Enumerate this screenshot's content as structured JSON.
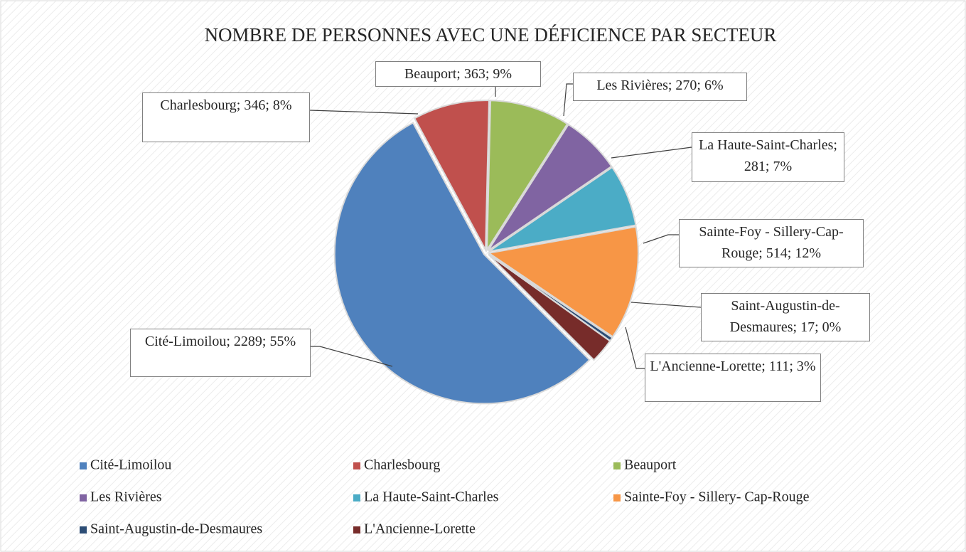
{
  "chart_data": {
    "type": "pie",
    "title": "NOMBRE DE PERSONNES AVEC UNE DÉFICIENCE PAR SECTEUR",
    "categories": [
      "Cité-Limoilou",
      "Charlesbourg",
      "Beauport",
      "Les Rivières",
      "La Haute-Saint-Charles",
      "Sainte-Foy - Sillery- Cap-Rouge",
      "Saint-Augustin-de-Desmaures",
      "L'Ancienne-Lorette"
    ],
    "values": [
      2289,
      346,
      363,
      270,
      281,
      514,
      17,
      111
    ],
    "value_labels": [
      "Cité-Limoilou; 2289; 55%",
      "Charlesbourg; 346; 8%",
      "Beauport; 363; 9%",
      "Les Rivières; 270; 6%",
      "La Haute-Saint-Charles; 281; 7%",
      "Sainte-Foy - Sillery-Cap-Rouge; 514; 12%",
      "Saint-Augustin-de-Desmaures; 17; 0%",
      "L'Ancienne-Lorette; 111; 3%"
    ],
    "colors": [
      "#4f81bd",
      "#c0504d",
      "#9bbb59",
      "#8064a2",
      "#4bacc6",
      "#f79646",
      "#2c4d75",
      "#772c2a"
    ],
    "legend": "bottom"
  }
}
